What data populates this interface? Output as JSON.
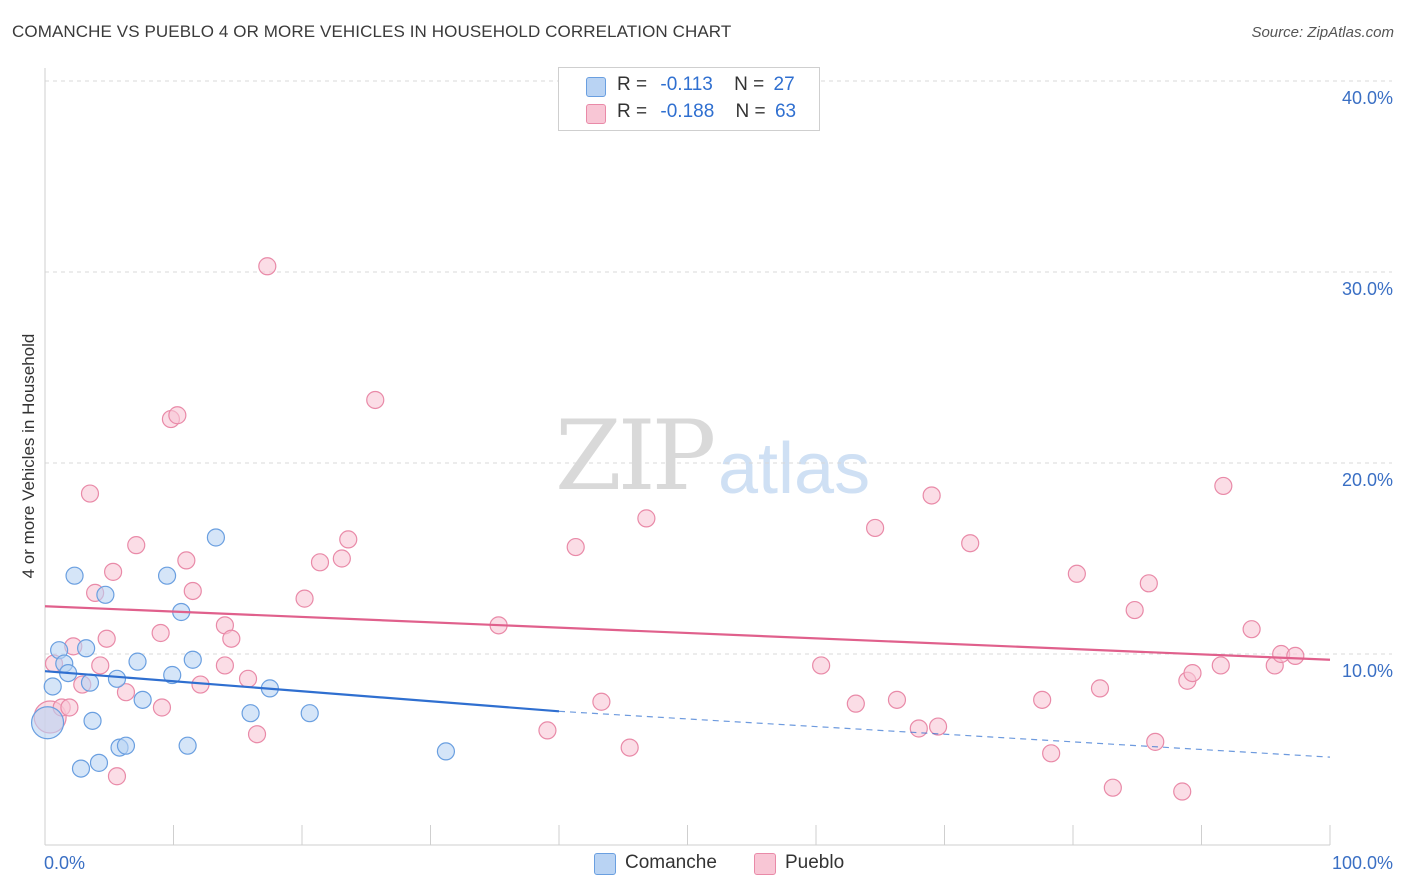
{
  "title": "COMANCHE VS PUEBLO 4 OR MORE VEHICLES IN HOUSEHOLD CORRELATION CHART",
  "source": "Source: ZipAtlas.com",
  "watermark": {
    "zip": "ZIP",
    "atlas": "atlas"
  },
  "legend": {
    "comanche": {
      "r_label": "R =",
      "r_value": "-0.113",
      "n_label": "N =",
      "n_value": "27"
    },
    "pueblo": {
      "r_label": "R =",
      "r_value": "-0.188",
      "n_label": "N =",
      "n_value": "63"
    }
  },
  "bottom_legend": {
    "comanche": "Comanche",
    "pueblo": "Pueblo"
  },
  "colors": {
    "comanche_fill": "#b9d3f3",
    "comanche_stroke": "#6a9fe0",
    "comanche_line": "#2f6fd0",
    "pueblo_fill": "#f8c6d5",
    "pueblo_stroke": "#e98aa8",
    "pueblo_line": "#e0608c",
    "grid": "#d9d9d9",
    "tick": "#3a6fc4"
  },
  "chart_data": {
    "type": "scatter",
    "title": "COMANCHE VS PUEBLO 4 OR MORE VEHICLES IN HOUSEHOLD CORRELATION CHART",
    "xlabel": "",
    "ylabel": "4 or more Vehicles in Household",
    "xlim": [
      0,
      100
    ],
    "ylim": [
      0,
      42
    ],
    "x_tick_labels": [
      "0.0%",
      "100.0%"
    ],
    "y_ticks": [
      10,
      20,
      30,
      40
    ],
    "y_tick_labels": [
      "10.0%",
      "20.0%",
      "30.0%",
      "40.0%"
    ],
    "series": [
      {
        "name": "Comanche",
        "r": -0.113,
        "n": 27,
        "trend": {
          "x0": 0,
          "y0": 9.1,
          "x1": 40,
          "y1": 7.0,
          "dashed_to": 100,
          "dashed_y": 4.6
        },
        "points": [
          {
            "x": 0.2,
            "y": 6.4,
            "big": true
          },
          {
            "x": 0.6,
            "y": 8.3
          },
          {
            "x": 1.1,
            "y": 10.2
          },
          {
            "x": 1.5,
            "y": 9.5
          },
          {
            "x": 1.8,
            "y": 9.0
          },
          {
            "x": 2.3,
            "y": 14.1
          },
          {
            "x": 2.8,
            "y": 4.0
          },
          {
            "x": 3.2,
            "y": 10.3
          },
          {
            "x": 3.5,
            "y": 8.5
          },
          {
            "x": 3.7,
            "y": 6.5
          },
          {
            "x": 4.2,
            "y": 4.3
          },
          {
            "x": 4.7,
            "y": 13.1
          },
          {
            "x": 5.6,
            "y": 8.7
          },
          {
            "x": 5.8,
            "y": 5.1
          },
          {
            "x": 6.3,
            "y": 5.2
          },
          {
            "x": 7.2,
            "y": 9.6
          },
          {
            "x": 7.6,
            "y": 7.6
          },
          {
            "x": 9.9,
            "y": 8.9
          },
          {
            "x": 9.5,
            "y": 14.1
          },
          {
            "x": 10.6,
            "y": 12.2
          },
          {
            "x": 11.1,
            "y": 5.2
          },
          {
            "x": 11.5,
            "y": 9.7
          },
          {
            "x": 13.3,
            "y": 16.1
          },
          {
            "x": 16.0,
            "y": 6.9
          },
          {
            "x": 17.5,
            "y": 8.2
          },
          {
            "x": 20.6,
            "y": 6.9
          },
          {
            "x": 31.2,
            "y": 4.9
          }
        ]
      },
      {
        "name": "Pueblo",
        "r": -0.188,
        "n": 63,
        "trend": {
          "x0": 0,
          "y0": 12.5,
          "x1": 100,
          "y1": 9.7
        },
        "points": [
          {
            "x": 0.4,
            "y": 6.7,
            "big": true
          },
          {
            "x": 0.7,
            "y": 9.5
          },
          {
            "x": 1.3,
            "y": 7.2
          },
          {
            "x": 1.9,
            "y": 7.2
          },
          {
            "x": 2.2,
            "y": 10.4
          },
          {
            "x": 2.9,
            "y": 8.4
          },
          {
            "x": 3.5,
            "y": 18.4
          },
          {
            "x": 3.9,
            "y": 13.2
          },
          {
            "x": 4.3,
            "y": 9.4
          },
          {
            "x": 4.8,
            "y": 10.8
          },
          {
            "x": 5.3,
            "y": 14.3
          },
          {
            "x": 5.6,
            "y": 3.6
          },
          {
            "x": 6.3,
            "y": 8.0
          },
          {
            "x": 7.1,
            "y": 15.7
          },
          {
            "x": 9.0,
            "y": 11.1
          },
          {
            "x": 9.1,
            "y": 7.2
          },
          {
            "x": 9.8,
            "y": 22.3
          },
          {
            "x": 10.3,
            "y": 22.5
          },
          {
            "x": 11.0,
            "y": 14.9
          },
          {
            "x": 11.5,
            "y": 13.3
          },
          {
            "x": 12.1,
            "y": 8.4
          },
          {
            "x": 14.0,
            "y": 9.4
          },
          {
            "x": 14.0,
            "y": 11.5
          },
          {
            "x": 14.5,
            "y": 10.8
          },
          {
            "x": 15.8,
            "y": 8.7
          },
          {
            "x": 16.5,
            "y": 5.8
          },
          {
            "x": 17.3,
            "y": 30.3
          },
          {
            "x": 20.2,
            "y": 12.9
          },
          {
            "x": 21.4,
            "y": 14.8
          },
          {
            "x": 23.1,
            "y": 15.0
          },
          {
            "x": 23.6,
            "y": 16.0
          },
          {
            "x": 25.7,
            "y": 23.3
          },
          {
            "x": 35.3,
            "y": 11.5
          },
          {
            "x": 39.1,
            "y": 6.0
          },
          {
            "x": 41.3,
            "y": 15.6
          },
          {
            "x": 43.3,
            "y": 7.5
          },
          {
            "x": 45.5,
            "y": 5.1
          },
          {
            "x": 46.8,
            "y": 17.1
          },
          {
            "x": 60.4,
            "y": 9.4
          },
          {
            "x": 63.1,
            "y": 7.4
          },
          {
            "x": 64.6,
            "y": 16.6
          },
          {
            "x": 66.3,
            "y": 7.6
          },
          {
            "x": 68.0,
            "y": 6.1
          },
          {
            "x": 69.0,
            "y": 18.3
          },
          {
            "x": 69.5,
            "y": 6.2
          },
          {
            "x": 72.0,
            "y": 15.8
          },
          {
            "x": 77.6,
            "y": 7.6
          },
          {
            "x": 78.3,
            "y": 4.8
          },
          {
            "x": 80.3,
            "y": 14.2
          },
          {
            "x": 82.1,
            "y": 8.2
          },
          {
            "x": 83.1,
            "y": 3.0
          },
          {
            "x": 84.8,
            "y": 12.3
          },
          {
            "x": 85.9,
            "y": 13.7
          },
          {
            "x": 86.4,
            "y": 5.4
          },
          {
            "x": 88.5,
            "y": 2.8
          },
          {
            "x": 88.9,
            "y": 8.6
          },
          {
            "x": 89.3,
            "y": 9.0
          },
          {
            "x": 91.5,
            "y": 9.4
          },
          {
            "x": 91.7,
            "y": 18.8
          },
          {
            "x": 93.9,
            "y": 11.3
          },
          {
            "x": 95.7,
            "y": 9.4
          },
          {
            "x": 96.2,
            "y": 10.0
          },
          {
            "x": 97.3,
            "y": 9.9
          }
        ]
      }
    ]
  }
}
